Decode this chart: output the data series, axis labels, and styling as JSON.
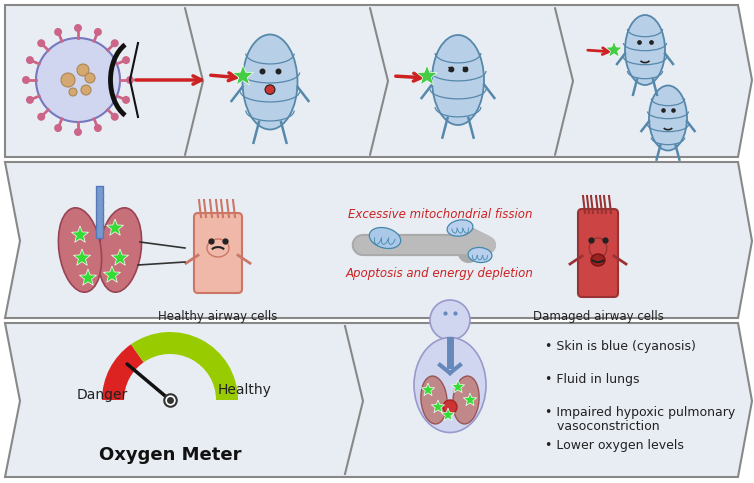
{
  "bg_color": "#eaeef5",
  "panel_bg": "#e8edf4",
  "outline_color": "#888888",
  "mito_color": "#b8cfe8",
  "mito_edge": "#5588aa",
  "spike_color": "#cc6688",
  "virus_body": "#d0d5f0",
  "lung_color": "#c8707a",
  "lung_edge": "#994455",
  "cell_healthy_color": "#f0b8a8",
  "cell_healthy_edge": "#cc7766",
  "cell_damaged_color": "#cc4444",
  "cell_damaged_edge": "#993333",
  "arrow_red": "#cc2222",
  "star_green": "#44cc44",
  "gauge_red": "#dd2222",
  "gauge_green": "#99cc00",
  "silhouette_color": "#d0d5f0",
  "silhouette_edge": "#9999cc",
  "text_dark": "#222222",
  "text_red": "#cc2222",
  "bullet_items": [
    "Skin is blue (cyanosis)",
    "Fluid in lungs",
    "Impaired hypoxic pulmonary\n   vasoconstriction",
    "Lower oxygen levels"
  ],
  "panel2_label_healthy": "Healthy airway cells",
  "panel2_label_damaged": "Damaged airway cells",
  "panel2_text1": "Excessive mitochondrial fission",
  "panel2_text2": "Apoptosis and energy depletion",
  "panel3_label_danger": "Danger",
  "panel3_label_healthy": "Healthy",
  "panel3_label_meter": "Oxygen Meter"
}
